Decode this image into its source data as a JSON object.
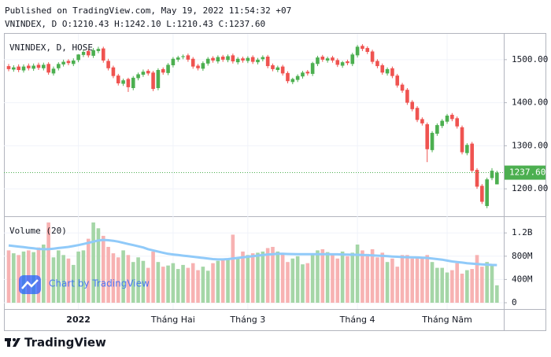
{
  "header": {
    "published": "Published on TradingView.com, May 19, 2022 11:54:32 +07",
    "ohlc": "VNINDEX, D O:1210.43 H:1242.10 L:1210.43 C:1237.60"
  },
  "watermark": "Chart by TradingView",
  "footer": "TradingView",
  "chart_data": {
    "type": "candlestick",
    "legend": "VNINDEX, D, HOSE",
    "volume_title": "Volume (20)",
    "up_color": "#4caf50",
    "down_color": "#ef5350",
    "volume_up_color": "#a5d6a7",
    "volume_down_color": "#f7b2b2",
    "ma_color": "#90caf9",
    "last_value_label": "1237.60",
    "categories": [
      null,
      null,
      null,
      null,
      null,
      null,
      null,
      null,
      null,
      null,
      null,
      null,
      null,
      null,
      "2022",
      null,
      null,
      null,
      null,
      null,
      null,
      null,
      null,
      null,
      null,
      null,
      null,
      null,
      null,
      null,
      null,
      null,
      null,
      "Tháng Hai",
      null,
      null,
      null,
      null,
      null,
      null,
      null,
      null,
      null,
      null,
      null,
      null,
      null,
      null,
      "Tháng 3",
      null,
      null,
      null,
      null,
      null,
      null,
      null,
      null,
      null,
      null,
      null,
      null,
      null,
      null,
      null,
      null,
      null,
      null,
      null,
      null,
      null,
      "Tháng 4",
      null,
      null,
      null,
      null,
      null,
      null,
      null,
      null,
      null,
      null,
      null,
      null,
      null,
      null,
      null,
      null,
      null,
      "Tháng Năm",
      null,
      null,
      null,
      null,
      null,
      null,
      null,
      null,
      null,
      null
    ],
    "open": [
      1485,
      1477,
      1484,
      1475,
      1486,
      1479,
      1488,
      1480,
      1490,
      1468,
      1480,
      1489,
      1497,
      1490,
      1499,
      1511,
      1520,
      1509,
      1520,
      1526,
      1497,
      1482,
      1463,
      1444,
      1455,
      1434,
      1457,
      1465,
      1474,
      1470,
      1434,
      1478,
      1469,
      1487,
      1500,
      1506,
      1510,
      1502,
      1486,
      1479,
      1491,
      1504,
      1496,
      1507,
      1499,
      1510,
      1494,
      1503,
      1497,
      1506,
      1494,
      1501,
      1507,
      1487,
      1476,
      1484,
      1469,
      1448,
      1453,
      1461,
      1472,
      1467,
      1490,
      1507,
      1498,
      1505,
      1499,
      1486,
      1496,
      1490,
      1510,
      1532,
      1527,
      1519,
      1497,
      1487,
      1468,
      1480,
      1463,
      1442,
      1430,
      1402,
      1388,
      1362,
      1350,
      1290,
      1328,
      1346,
      1356,
      1372,
      1364,
      1343,
      1283,
      1305,
      1244,
      1207,
      1160,
      1225,
      1210.43
    ],
    "high": [
      1490,
      1487,
      1489,
      1489,
      1491,
      1491,
      1493,
      1493,
      1494,
      1484,
      1494,
      1500,
      1501,
      1503,
      1516,
      1523,
      1524,
      1527,
      1530,
      1530,
      1502,
      1486,
      1467,
      1456,
      1458,
      1462,
      1470,
      1477,
      1478,
      1474,
      1480,
      1482,
      1492,
      1506,
      1509,
      1512,
      1514,
      1506,
      1490,
      1496,
      1506,
      1508,
      1510,
      1511,
      1512,
      1514,
      1506,
      1507,
      1508,
      1510,
      1504,
      1510,
      1511,
      1491,
      1486,
      1488,
      1473,
      1458,
      1466,
      1474,
      1476,
      1495,
      1509,
      1511,
      1507,
      1509,
      1503,
      1497,
      1500,
      1516,
      1534,
      1536,
      1531,
      1523,
      1501,
      1491,
      1482,
      1484,
      1467,
      1446,
      1434,
      1406,
      1392,
      1366,
      1354,
      1334,
      1352,
      1362,
      1374,
      1376,
      1368,
      1347,
      1306,
      1309,
      1248,
      1211,
      1226,
      1248,
      1242.1
    ],
    "low": [
      1473,
      1472,
      1471,
      1470,
      1475,
      1474,
      1476,
      1475,
      1465,
      1463,
      1475,
      1484,
      1487,
      1485,
      1494,
      1506,
      1505,
      1504,
      1515,
      1493,
      1475,
      1457,
      1440,
      1439,
      1425,
      1429,
      1452,
      1460,
      1463,
      1427,
      1429,
      1465,
      1464,
      1482,
      1495,
      1501,
      1495,
      1479,
      1475,
      1474,
      1486,
      1493,
      1491,
      1495,
      1494,
      1491,
      1489,
      1493,
      1492,
      1490,
      1489,
      1496,
      1480,
      1473,
      1471,
      1463,
      1445,
      1443,
      1448,
      1456,
      1463,
      1462,
      1485,
      1495,
      1493,
      1493,
      1483,
      1481,
      1487,
      1485,
      1505,
      1520,
      1513,
      1490,
      1480,
      1465,
      1463,
      1457,
      1435,
      1423,
      1395,
      1380,
      1355,
      1347,
      1262,
      1285,
      1323,
      1341,
      1351,
      1357,
      1340,
      1280,
      1278,
      1237,
      1200,
      1165,
      1155,
      1220,
      1210.43
    ],
    "close": [
      1478,
      1482,
      1476,
      1484,
      1480,
      1486,
      1481,
      1488,
      1470,
      1479,
      1490,
      1495,
      1492,
      1498,
      1512,
      1518,
      1510,
      1522,
      1525,
      1498,
      1480,
      1462,
      1445,
      1452,
      1436,
      1458,
      1466,
      1472,
      1468,
      1432,
      1476,
      1470,
      1488,
      1502,
      1505,
      1508,
      1500,
      1484,
      1480,
      1492,
      1502,
      1498,
      1506,
      1500,
      1508,
      1496,
      1502,
      1498,
      1504,
      1495,
      1500,
      1506,
      1485,
      1478,
      1482,
      1468,
      1450,
      1455,
      1462,
      1470,
      1468,
      1492,
      1505,
      1500,
      1503,
      1498,
      1488,
      1494,
      1492,
      1512,
      1530,
      1525,
      1518,
      1495,
      1485,
      1470,
      1478,
      1462,
      1440,
      1428,
      1400,
      1385,
      1360,
      1352,
      1292,
      1330,
      1348,
      1358,
      1370,
      1362,
      1345,
      1285,
      1302,
      1242,
      1205,
      1170,
      1222,
      1242,
      1237.6
    ],
    "volume": [
      900000000,
      850000000,
      820000000,
      880000000,
      900000000,
      870000000,
      950000000,
      1000000000,
      1380000000,
      780000000,
      900000000,
      820000000,
      760000000,
      650000000,
      880000000,
      900000000,
      1100000000,
      1380000000,
      1280000000,
      1150000000,
      960000000,
      850000000,
      780000000,
      900000000,
      820000000,
      700000000,
      780000000,
      720000000,
      600000000,
      880000000,
      700000000,
      620000000,
      640000000,
      680000000,
      580000000,
      650000000,
      600000000,
      680000000,
      560000000,
      620000000,
      550000000,
      680000000,
      720000000,
      760000000,
      740000000,
      1170000000,
      780000000,
      880000000,
      820000000,
      850000000,
      860000000,
      880000000,
      940000000,
      960000000,
      880000000,
      860000000,
      700000000,
      760000000,
      800000000,
      660000000,
      680000000,
      820000000,
      900000000,
      920000000,
      870000000,
      820000000,
      760000000,
      880000000,
      800000000,
      860000000,
      1000000000,
      900000000,
      840000000,
      920000000,
      780000000,
      860000000,
      700000000,
      760000000,
      620000000,
      820000000,
      820000000,
      760000000,
      780000000,
      760000000,
      820000000,
      700000000,
      600000000,
      600000000,
      520000000,
      560000000,
      680000000,
      500000000,
      560000000,
      580000000,
      820000000,
      620000000,
      700000000,
      660000000,
      300000000
    ],
    "volume_ma": [
      985000000,
      975000000,
      965000000,
      955000000,
      945000000,
      935000000,
      925000000,
      920000000,
      920000000,
      930000000,
      940000000,
      950000000,
      960000000,
      975000000,
      990000000,
      1010000000,
      1030000000,
      1050000000,
      1070000000,
      1080000000,
      1075000000,
      1065000000,
      1050000000,
      1030000000,
      1010000000,
      990000000,
      970000000,
      950000000,
      920000000,
      900000000,
      880000000,
      860000000,
      840000000,
      830000000,
      820000000,
      810000000,
      800000000,
      790000000,
      780000000,
      770000000,
      760000000,
      750000000,
      745000000,
      745000000,
      750000000,
      760000000,
      770000000,
      780000000,
      790000000,
      800000000,
      810000000,
      820000000,
      830000000,
      835000000,
      840000000,
      840000000,
      838000000,
      836000000,
      835000000,
      835000000,
      835000000,
      835000000,
      835000000,
      835000000,
      834000000,
      833000000,
      832000000,
      830000000,
      828000000,
      826000000,
      825000000,
      822000000,
      818000000,
      815000000,
      810000000,
      805000000,
      800000000,
      795000000,
      790000000,
      785000000,
      782000000,
      780000000,
      778000000,
      775000000,
      770000000,
      760000000,
      750000000,
      740000000,
      725000000,
      710000000,
      700000000,
      690000000,
      680000000,
      672000000,
      665000000,
      660000000,
      655000000,
      650000000,
      648000000
    ],
    "ylim": [
      1140,
      1560
    ],
    "yticks": [
      {
        "value": 1200,
        "label": "1200.00"
      },
      {
        "value": 1300,
        "label": "1300.00"
      },
      {
        "value": 1400,
        "label": "1400.00"
      },
      {
        "value": 1500,
        "label": "1500.00"
      }
    ],
    "volume_ylim": [
      -108000000,
      1446000000
    ],
    "volume_yticks": [
      0,
      {
        "value": 400000000,
        "label": "400M"
      },
      {
        "value": 800000000,
        "label": "800M"
      },
      {
        "value": 1200000000,
        "label": "1.2B"
      }
    ],
    "grid": true
  }
}
